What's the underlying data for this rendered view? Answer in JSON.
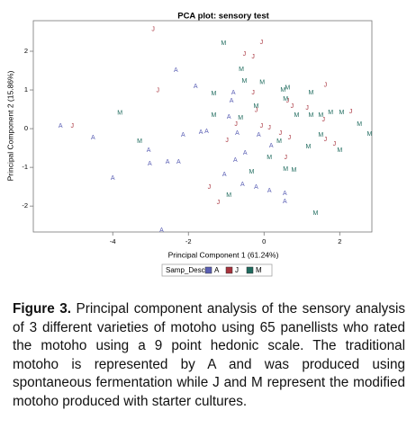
{
  "chart_data": {
    "type": "scatter",
    "title": "PCA plot: sensory test",
    "x_label": "Principal Component 1 (61.24%)",
    "y_label": "Principal Component 2 (15.86%)",
    "xlim": [
      -6.1,
      2.85
    ],
    "ylim": [
      -2.67,
      2.79
    ],
    "xticks": [
      -4,
      -2,
      0,
      2
    ],
    "yticks": [
      -2,
      -1,
      0,
      1,
      2
    ],
    "legend_title": "Samp_Desc",
    "series": [
      {
        "name": "A",
        "color": "#5a5fb4",
        "x": [
          -5.38,
          -4.52,
          -4.0,
          -3.05,
          -3.02,
          -2.55,
          -2.26,
          -2.33,
          -1.81,
          -2.14,
          -1.67,
          -1.52,
          -0.81,
          -0.93,
          -0.71,
          -0.5,
          -1.05,
          -0.57,
          -0.21,
          -0.76,
          0.55,
          0.55,
          0.19,
          -2.71,
          -0.86,
          -0.14,
          0.14
        ],
        "values": [
          0.07,
          -0.23,
          -1.28,
          -0.56,
          -0.91,
          -0.86,
          -0.86,
          1.51,
          1.09,
          -0.16,
          -0.09,
          -0.07,
          0.93,
          0.3,
          -0.12,
          -0.63,
          -1.19,
          -1.44,
          -1.51,
          -0.81,
          -1.67,
          -1.88,
          -0.44,
          -2.63,
          0.72,
          -0.16,
          -1.6
        ]
      },
      {
        "name": "J",
        "color": "#a8333d",
        "x": [
          -2.93,
          -0.07,
          -0.52,
          -0.29,
          -2.81,
          -5.07,
          -1.45,
          -1.21,
          -0.74,
          -0.29,
          -0.21,
          -0.07,
          0.14,
          0.62,
          0.74,
          0.43,
          0.57,
          1.14,
          1.62,
          1.57,
          1.62,
          1.86,
          0.67,
          -0.98,
          2.29
        ],
        "values": [
          2.56,
          2.23,
          1.93,
          1.86,
          0.98,
          0.07,
          -1.51,
          -1.91,
          0.12,
          0.93,
          0.47,
          0.07,
          0.02,
          0.72,
          0.58,
          -0.12,
          -0.74,
          0.53,
          1.12,
          0.23,
          -0.28,
          -0.4,
          -0.23,
          -0.3,
          0.44
        ]
      },
      {
        "name": "M",
        "color": "#1f6b5e",
        "x": [
          -3.81,
          -3.29,
          -1.07,
          -0.6,
          -0.52,
          -1.33,
          -1.33,
          -0.62,
          -0.05,
          0.5,
          0.57,
          1.24,
          0.86,
          1.24,
          1.5,
          1.76,
          2.05,
          2.52,
          2.0,
          1.5,
          1.17,
          0.57,
          0.79,
          -0.33,
          -0.93,
          1.36,
          0.14,
          0.4,
          2.79,
          0.62,
          -0.21
        ],
        "values": [
          0.4,
          -0.33,
          2.21,
          1.53,
          1.23,
          0.91,
          0.35,
          0.28,
          1.19,
          1.0,
          0.77,
          0.93,
          0.35,
          0.35,
          0.35,
          0.42,
          0.42,
          0.12,
          -0.56,
          -0.16,
          -0.47,
          -1.05,
          -1.07,
          -1.12,
          -1.72,
          -2.19,
          -0.74,
          -0.33,
          -0.14,
          1.05,
          0.58
        ]
      }
    ]
  },
  "caption": {
    "label": "Figure 3.",
    "text": "Principal component analysis of the sensory analysis of 3 different varieties of motoho using 65 panellists who rated the motoho using a 9 point hedonic scale. The traditional motoho is represented by A and was produced using spontaneous fermentation while J and M represent the modified motoho produced with starter cultures."
  }
}
